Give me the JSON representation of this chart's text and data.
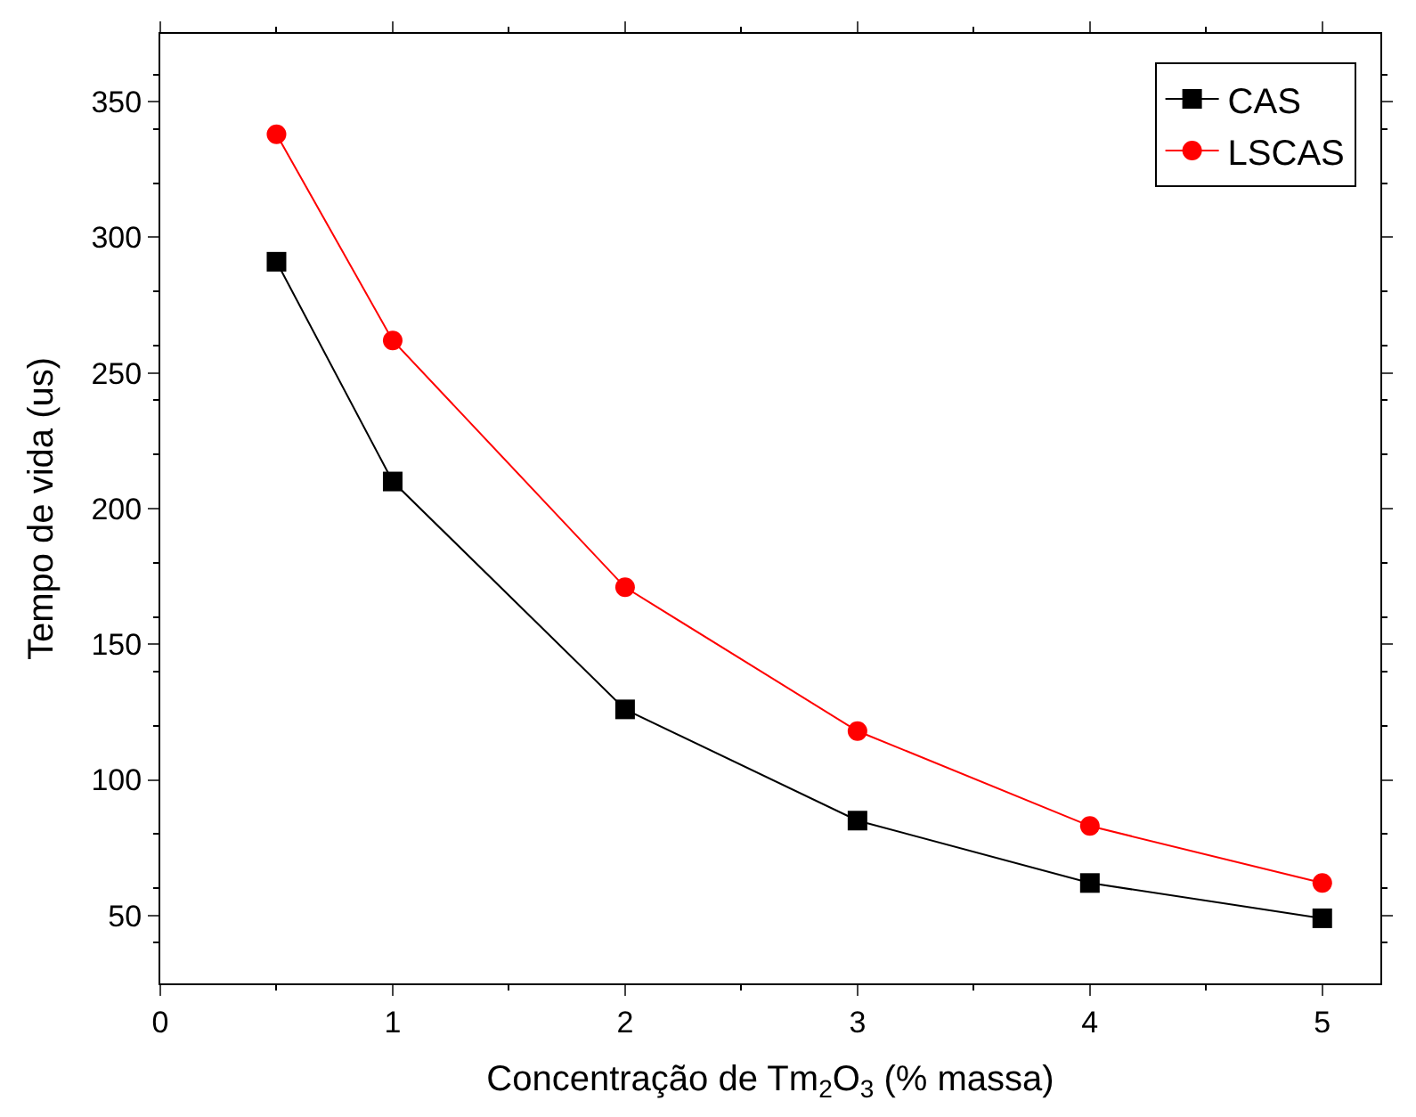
{
  "chart_data": {
    "type": "line",
    "xlabel": "Concentração de Tm$_{2}$O$_{3}$ (% massa)",
    "ylabel": "Tempo de vida (us)",
    "x": [
      0.5,
      1,
      2,
      3,
      4,
      5
    ],
    "series": [
      {
        "name": "CAS",
        "color": "#000000",
        "marker": "square",
        "values": [
          291,
          210,
          126,
          85,
          62,
          49
        ]
      },
      {
        "name": "LSCAS",
        "color": "#ff0000",
        "marker": "circle",
        "values": [
          338,
          262,
          171,
          118,
          83,
          62
        ]
      }
    ],
    "xlim": [
      0,
      5.25
    ],
    "xticks": [
      0,
      1,
      2,
      3,
      4,
      5
    ],
    "ylim": [
      25,
      375
    ],
    "yticks": [
      50,
      100,
      150,
      200,
      250,
      300,
      350
    ],
    "legend": "top right",
    "line_style": "solid"
  }
}
